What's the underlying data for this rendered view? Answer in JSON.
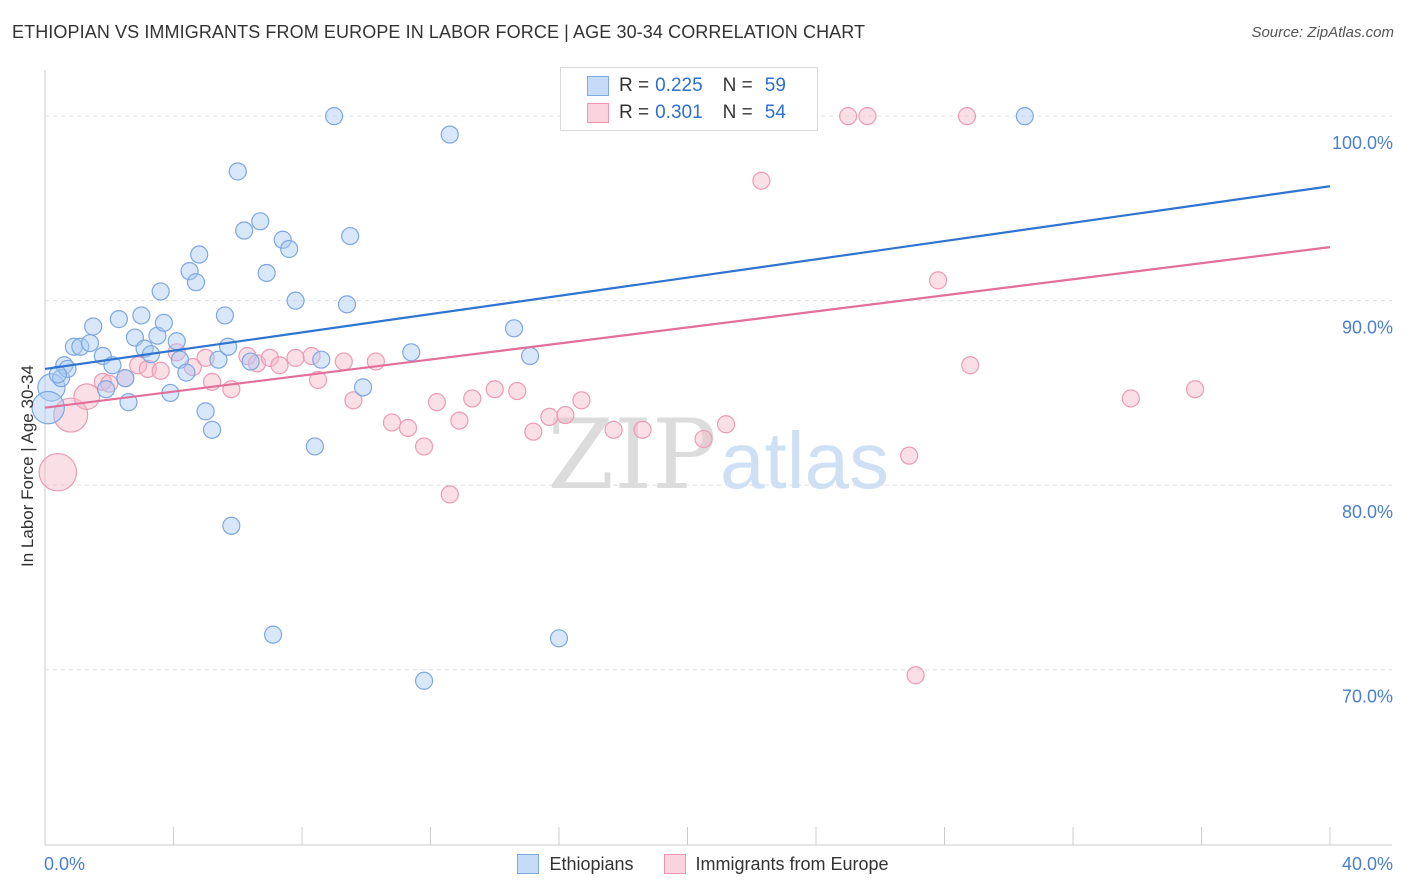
{
  "header": {
    "title": "ETHIOPIAN VS IMMIGRANTS FROM EUROPE IN LABOR FORCE | AGE 30-34 CORRELATION CHART",
    "source": "Source: ZipAtlas.com"
  },
  "watermark": {
    "zip": "ZIP",
    "atlas": "atlas"
  },
  "legend_top": {
    "rows": [
      {
        "r_label": "R =",
        "r_value": "0.225",
        "n_label": "N =",
        "n_value": "59",
        "color": "#a9c9f5"
      },
      {
        "r_label": "R =",
        "r_value": "0.301",
        "n_label": "N =",
        "n_value": "54",
        "color": "#f6b9ca"
      }
    ]
  },
  "legend_bottom": {
    "items": [
      "Ethiopians",
      "Immigrants from Europe"
    ]
  },
  "chart_data": {
    "type": "scatter",
    "xlabel": "",
    "ylabel": "In Labor Force | Age 30-34",
    "xlim": [
      0,
      40
    ],
    "ylim": [
      60.5,
      102.5
    ],
    "x_tick_labels": [
      "0.0%",
      "40.0%"
    ],
    "y_ticks": [
      100,
      90,
      80,
      70
    ],
    "y_tick_labels": [
      "100.0%",
      "90.0%",
      "80.0%",
      "70.0%"
    ],
    "grid": true,
    "legend_position": "top-center",
    "colors": {
      "ethiopians_fill": "#a9c9f5",
      "ethiopians_line": "#2f74d0",
      "europe_fill": "#f6b9ca",
      "europe_line": "#e0709a",
      "axis_text": "#4a7fcf"
    },
    "series": [
      {
        "name": "Ethiopians",
        "points": [
          [
            0.2,
            85.3,
            1.6
          ],
          [
            0.5,
            85.8,
            1
          ],
          [
            0.6,
            86.5,
            1
          ],
          [
            0.7,
            86.3,
            1
          ],
          [
            0.9,
            87.5,
            1
          ],
          [
            1.1,
            87.5,
            1
          ],
          [
            1.4,
            87.7,
            1
          ],
          [
            1.5,
            88.6,
            1
          ],
          [
            1.8,
            87.0,
            1
          ],
          [
            1.9,
            85.2,
            1
          ],
          [
            2.1,
            86.5,
            1
          ],
          [
            2.3,
            89.0,
            1
          ],
          [
            2.5,
            85.8,
            1
          ],
          [
            2.6,
            84.5,
            1
          ],
          [
            2.8,
            88.0,
            1
          ],
          [
            3.0,
            89.2,
            1
          ],
          [
            3.1,
            87.4,
            1
          ],
          [
            3.3,
            87.1,
            1
          ],
          [
            3.5,
            88.1,
            1
          ],
          [
            3.6,
            90.5,
            1
          ],
          [
            3.7,
            88.8,
            1
          ],
          [
            3.9,
            85.0,
            1
          ],
          [
            4.1,
            87.8,
            1
          ],
          [
            4.2,
            86.8,
            1
          ],
          [
            4.4,
            86.1,
            1
          ],
          [
            4.5,
            91.6,
            1
          ],
          [
            4.7,
            91.0,
            1
          ],
          [
            4.8,
            92.5,
            1
          ],
          [
            5.0,
            84.0,
            1
          ],
          [
            5.2,
            83.0,
            1
          ],
          [
            5.4,
            86.8,
            1
          ],
          [
            5.6,
            89.2,
            1
          ],
          [
            5.7,
            87.5,
            1
          ],
          [
            5.8,
            77.8,
            1
          ],
          [
            6.0,
            97.0,
            1
          ],
          [
            6.2,
            93.8,
            1
          ],
          [
            6.4,
            86.7,
            1
          ],
          [
            6.7,
            94.3,
            1
          ],
          [
            6.9,
            91.5,
            1
          ],
          [
            7.1,
            71.9,
            1
          ],
          [
            7.4,
            93.3,
            1
          ],
          [
            7.6,
            92.8,
            1
          ],
          [
            7.8,
            90.0,
            1
          ],
          [
            8.4,
            82.1,
            1
          ],
          [
            8.6,
            86.8,
            1
          ],
          [
            9.0,
            100.0,
            1
          ],
          [
            9.4,
            89.8,
            1
          ],
          [
            9.5,
            93.5,
            1
          ],
          [
            9.9,
            85.3,
            1
          ],
          [
            11.4,
            87.2,
            1
          ],
          [
            11.8,
            69.4,
            1
          ],
          [
            12.6,
            99.0,
            1
          ],
          [
            14.6,
            88.5,
            1
          ],
          [
            15.1,
            87.0,
            1
          ],
          [
            16.0,
            71.7,
            1
          ],
          [
            20.9,
            100.0,
            1
          ],
          [
            30.5,
            100.0,
            1
          ],
          [
            0.1,
            84.2,
            1.9
          ],
          [
            0.4,
            86.0,
            1
          ]
        ]
      },
      {
        "name": "Immigrants from Europe",
        "points": [
          [
            0.4,
            80.7,
            2.2
          ],
          [
            0.8,
            83.8,
            2.0
          ],
          [
            1.3,
            84.8,
            1.5
          ],
          [
            1.8,
            85.6,
            1
          ],
          [
            2.0,
            85.5,
            1
          ],
          [
            2.5,
            85.8,
            1
          ],
          [
            2.9,
            86.5,
            1
          ],
          [
            3.2,
            86.3,
            1
          ],
          [
            3.6,
            86.2,
            1
          ],
          [
            4.1,
            87.2,
            1
          ],
          [
            4.6,
            86.4,
            1
          ],
          [
            5.0,
            86.9,
            1
          ],
          [
            5.2,
            85.6,
            1
          ],
          [
            5.8,
            85.2,
            1
          ],
          [
            6.3,
            87.0,
            1
          ],
          [
            6.6,
            86.6,
            1
          ],
          [
            7.0,
            86.9,
            1
          ],
          [
            7.3,
            86.5,
            1
          ],
          [
            7.8,
            86.9,
            1
          ],
          [
            8.3,
            87.0,
            1
          ],
          [
            8.5,
            85.7,
            1
          ],
          [
            9.3,
            86.7,
            1
          ],
          [
            9.6,
            84.6,
            1
          ],
          [
            10.3,
            86.7,
            1
          ],
          [
            10.8,
            83.4,
            1
          ],
          [
            11.3,
            83.1,
            1
          ],
          [
            11.8,
            82.1,
            1
          ],
          [
            12.2,
            84.5,
            1
          ],
          [
            12.6,
            79.5,
            1
          ],
          [
            12.9,
            83.5,
            1
          ],
          [
            13.3,
            84.7,
            1
          ],
          [
            14.0,
            85.2,
            1
          ],
          [
            14.7,
            85.1,
            1
          ],
          [
            15.2,
            82.9,
            1
          ],
          [
            15.7,
            83.7,
            1
          ],
          [
            16.2,
            83.8,
            1
          ],
          [
            16.7,
            84.6,
            1
          ],
          [
            17.7,
            83.0,
            1
          ],
          [
            18.6,
            83.0,
            1
          ],
          [
            18.7,
            100.0,
            1
          ],
          [
            20.5,
            82.5,
            1
          ],
          [
            21.2,
            83.3,
            1
          ],
          [
            22.2,
            100.0,
            1
          ],
          [
            22.3,
            96.5,
            1
          ],
          [
            22.8,
            100.0,
            1
          ],
          [
            25.0,
            100.0,
            1
          ],
          [
            25.6,
            100.0,
            1
          ],
          [
            26.9,
            81.6,
            1
          ],
          [
            27.1,
            69.7,
            1
          ],
          [
            27.8,
            91.1,
            1
          ],
          [
            28.7,
            100.0,
            1
          ],
          [
            28.8,
            86.5,
            1
          ],
          [
            33.8,
            84.7,
            1
          ],
          [
            35.8,
            85.2,
            1
          ]
        ]
      }
    ],
    "trend_lines": [
      {
        "series": "Ethiopians",
        "x": [
          0,
          40
        ],
        "y": [
          86.3,
          96.2
        ]
      },
      {
        "series": "Immigrants from Europe",
        "x": [
          0,
          40
        ],
        "y": [
          84.2,
          92.9
        ]
      }
    ]
  }
}
